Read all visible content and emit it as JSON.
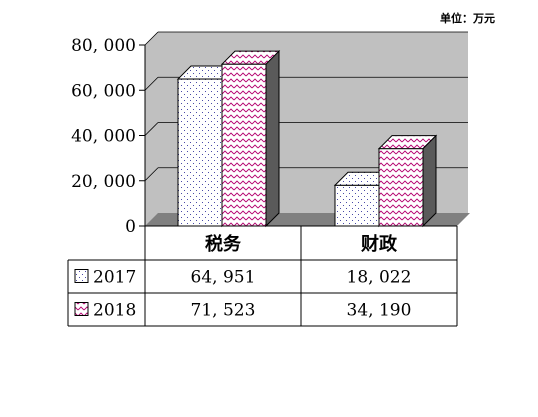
{
  "chart_data": {
    "type": "bar",
    "unit_label": "单位：万元",
    "categories": [
      "税务",
      "财政"
    ],
    "series": [
      {
        "name": "2017",
        "values": [
          64951,
          18022
        ],
        "value_labels": [
          "64, 951",
          "18, 022"
        ],
        "pattern": "dots",
        "pattern_color": "#4a4aa8"
      },
      {
        "name": "2018",
        "values": [
          71523,
          34190
        ],
        "value_labels": [
          "71, 523",
          "34, 190"
        ],
        "pattern": "zigzag",
        "pattern_color": "#b4006e"
      }
    ],
    "y_ticks": [
      0,
      20000,
      40000,
      60000,
      80000
    ],
    "y_tick_labels": [
      "0",
      "20, 000",
      "40, 000",
      "60, 000",
      "80, 000"
    ],
    "ylim": [
      0,
      80000
    ],
    "grid": true,
    "legend": "table-bottom",
    "colors": {
      "wall": "#c0c0c0",
      "floor": "#808080",
      "side": "#5a5a5a"
    }
  }
}
